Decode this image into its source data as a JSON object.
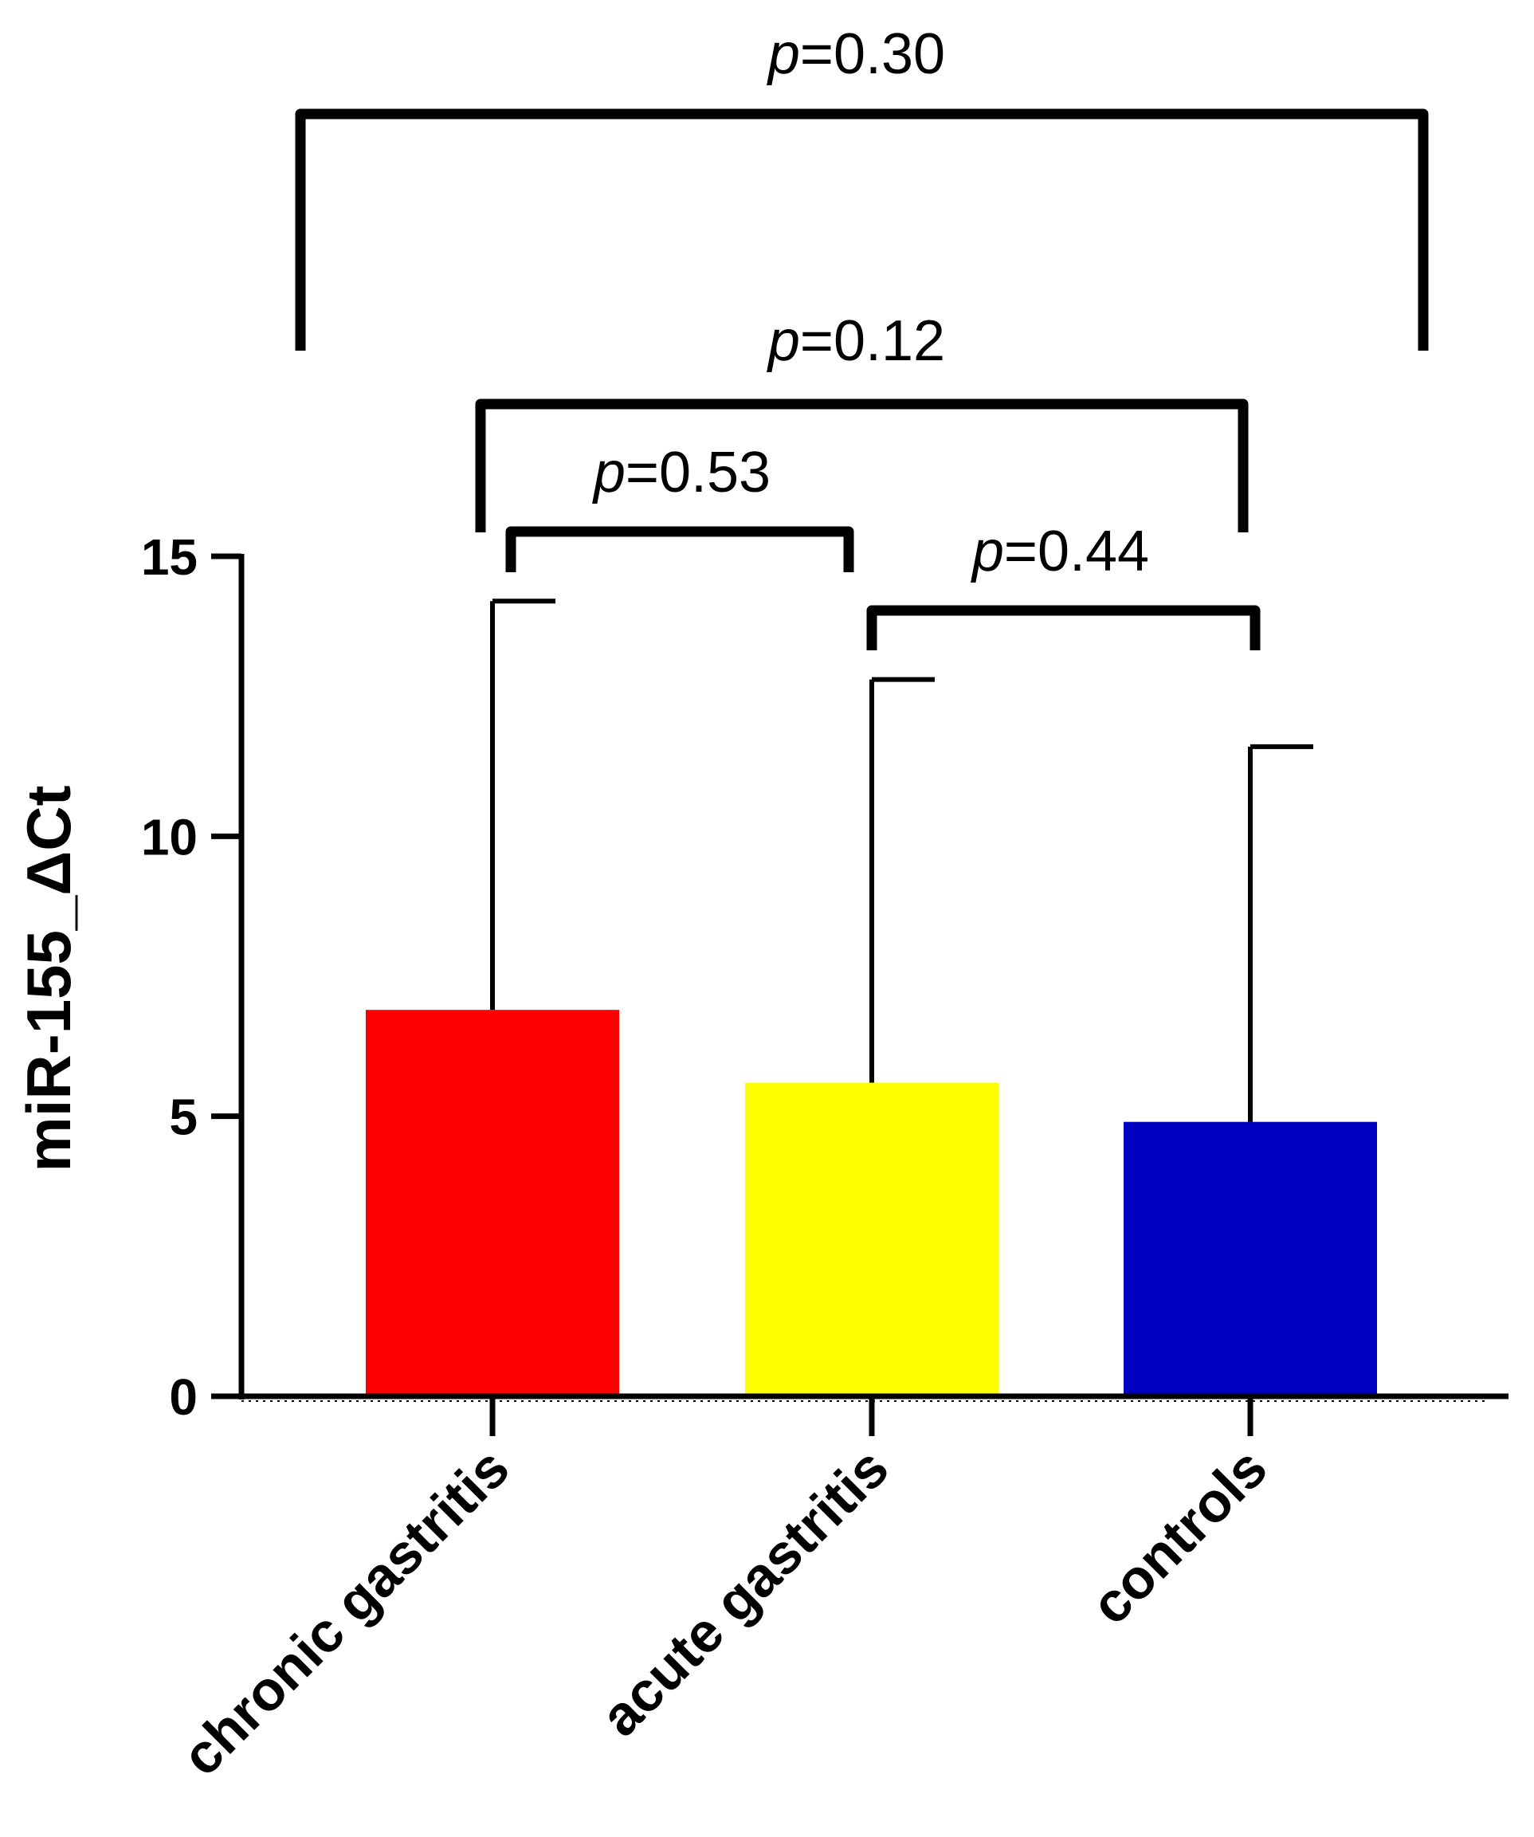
{
  "chart_data": {
    "type": "bar",
    "categories": [
      "chronic gastritis",
      "acute gastritis",
      "controls"
    ],
    "series": [
      {
        "values": [
          6.9,
          5.6,
          4.9
        ],
        "error_upper": [
          14.2,
          12.8,
          11.6
        ],
        "colors": [
          "#ff0000",
          "#ffff00",
          "#0000c0"
        ]
      }
    ],
    "ylabel": "miR-155_ΔCt",
    "xlabel": "",
    "title": "",
    "ylim": [
      0,
      15
    ],
    "yticks": [
      0,
      5,
      10,
      15
    ],
    "grid": false,
    "legend": "none",
    "comparisons": [
      {
        "from": 0,
        "to": 2,
        "p_symbol": "p",
        "p_value": "=0.30"
      },
      {
        "from": 0,
        "to": 2,
        "p_symbol": "p",
        "p_value": "=0.12"
      },
      {
        "from": 0,
        "to": 1,
        "p_symbol": "p",
        "p_value": "=0.53"
      },
      {
        "from": 1,
        "to": 2,
        "p_symbol": "p",
        "p_value": "=0.44"
      }
    ]
  }
}
